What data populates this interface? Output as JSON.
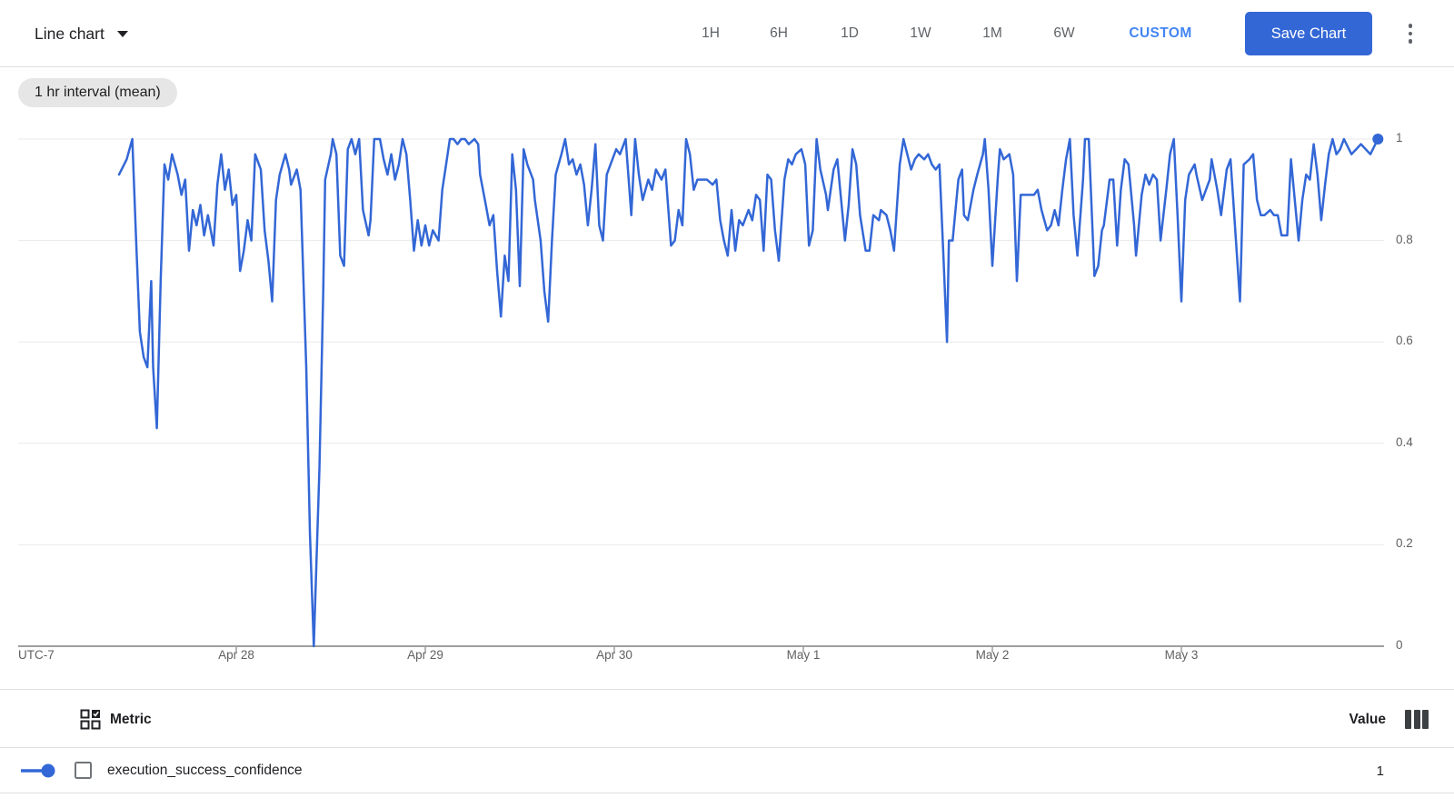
{
  "header": {
    "chart_type_label": "Line chart",
    "time_ranges": [
      "1H",
      "6H",
      "1D",
      "1W",
      "1M",
      "6W"
    ],
    "custom_label": "CUSTOM",
    "save_button_label": "Save Chart"
  },
  "interval_chip": "1 hr interval (mean)",
  "chart": {
    "line_color": "#3367d6",
    "y_tick_labels": [
      "1",
      "0.8",
      "0.6",
      "0.4",
      "0.2",
      "0"
    ],
    "x_axis": {
      "timezone_label": "UTC-7",
      "day_labels": [
        "Apr 28",
        "Apr 29",
        "Apr 30",
        "May 1",
        "May 2",
        "May 3"
      ]
    }
  },
  "chart_data": {
    "type": "line",
    "title": "",
    "interval": "1 hr interval (mean)",
    "ylim": [
      0,
      1
    ],
    "y_ticks": [
      0,
      0.2,
      0.4,
      0.6,
      0.8,
      1
    ],
    "x_tick_labels": [
      "Apr 28",
      "Apr 29",
      "Apr 30",
      "May 1",
      "May 2",
      "May 3"
    ],
    "x_unit": "days relative to Apr 28 00:00 (UTC-7)",
    "grid": true,
    "legend_position": "bottom-table",
    "series": [
      {
        "name": "execution_success_confidence",
        "color": "#3367d6",
        "current_value": 1,
        "points": [
          [
            -0.62,
            0.93
          ],
          [
            -0.58,
            0.96
          ],
          [
            -0.55,
            1.0
          ],
          [
            -0.53,
            0.8
          ],
          [
            -0.51,
            0.62
          ],
          [
            -0.49,
            0.57
          ],
          [
            -0.47,
            0.55
          ],
          [
            -0.45,
            0.72
          ],
          [
            -0.44,
            0.55
          ],
          [
            -0.42,
            0.43
          ],
          [
            -0.4,
            0.72
          ],
          [
            -0.38,
            0.95
          ],
          [
            -0.36,
            0.92
          ],
          [
            -0.34,
            0.97
          ],
          [
            -0.31,
            0.93
          ],
          [
            -0.29,
            0.89
          ],
          [
            -0.27,
            0.92
          ],
          [
            -0.25,
            0.78
          ],
          [
            -0.23,
            0.86
          ],
          [
            -0.21,
            0.83
          ],
          [
            -0.19,
            0.87
          ],
          [
            -0.17,
            0.81
          ],
          [
            -0.15,
            0.85
          ],
          [
            -0.12,
            0.79
          ],
          [
            -0.1,
            0.91
          ],
          [
            -0.08,
            0.97
          ],
          [
            -0.06,
            0.9
          ],
          [
            -0.04,
            0.94
          ],
          [
            -0.02,
            0.87
          ],
          [
            0.0,
            0.89
          ],
          [
            0.02,
            0.74
          ],
          [
            0.04,
            0.78
          ],
          [
            0.06,
            0.84
          ],
          [
            0.08,
            0.8
          ],
          [
            0.1,
            0.97
          ],
          [
            0.13,
            0.94
          ],
          [
            0.15,
            0.82
          ],
          [
            0.17,
            0.76
          ],
          [
            0.19,
            0.68
          ],
          [
            0.21,
            0.88
          ],
          [
            0.23,
            0.93
          ],
          [
            0.26,
            0.97
          ],
          [
            0.28,
            0.94
          ],
          [
            0.29,
            0.91
          ],
          [
            0.32,
            0.94
          ],
          [
            0.34,
            0.9
          ],
          [
            0.37,
            0.55
          ],
          [
            0.39,
            0.22
          ],
          [
            0.41,
            0.0
          ],
          [
            0.44,
            0.35
          ],
          [
            0.46,
            0.7
          ],
          [
            0.47,
            0.92
          ],
          [
            0.5,
            0.97
          ],
          [
            0.51,
            1.0
          ],
          [
            0.53,
            0.97
          ],
          [
            0.55,
            0.77
          ],
          [
            0.57,
            0.75
          ],
          [
            0.59,
            0.98
          ],
          [
            0.61,
            1.0
          ],
          [
            0.63,
            0.97
          ],
          [
            0.65,
            1.0
          ],
          [
            0.67,
            0.86
          ],
          [
            0.7,
            0.81
          ],
          [
            0.71,
            0.84
          ],
          [
            0.73,
            1.0
          ],
          [
            0.76,
            1.0
          ],
          [
            0.78,
            0.96
          ],
          [
            0.8,
            0.93
          ],
          [
            0.82,
            0.97
          ],
          [
            0.84,
            0.92
          ],
          [
            0.86,
            0.95
          ],
          [
            0.88,
            1.0
          ],
          [
            0.9,
            0.97
          ],
          [
            0.92,
            0.88
          ],
          [
            0.94,
            0.78
          ],
          [
            0.96,
            0.84
          ],
          [
            0.98,
            0.79
          ],
          [
            1.0,
            0.83
          ],
          [
            1.02,
            0.79
          ],
          [
            1.04,
            0.82
          ],
          [
            1.07,
            0.8
          ],
          [
            1.09,
            0.9
          ],
          [
            1.11,
            0.95
          ],
          [
            1.13,
            1.0
          ],
          [
            1.15,
            1.0
          ],
          [
            1.17,
            0.99
          ],
          [
            1.19,
            1.0
          ],
          [
            1.21,
            1.0
          ],
          [
            1.23,
            0.99
          ],
          [
            1.26,
            1.0
          ],
          [
            1.28,
            0.99
          ],
          [
            1.29,
            0.93
          ],
          [
            1.32,
            0.87
          ],
          [
            1.34,
            0.83
          ],
          [
            1.36,
            0.85
          ],
          [
            1.38,
            0.74
          ],
          [
            1.4,
            0.65
          ],
          [
            1.42,
            0.77
          ],
          [
            1.44,
            0.72
          ],
          [
            1.46,
            0.97
          ],
          [
            1.48,
            0.9
          ],
          [
            1.5,
            0.71
          ],
          [
            1.52,
            0.98
          ],
          [
            1.54,
            0.95
          ],
          [
            1.57,
            0.92
          ],
          [
            1.58,
            0.88
          ],
          [
            1.61,
            0.8
          ],
          [
            1.63,
            0.7
          ],
          [
            1.65,
            0.64
          ],
          [
            1.67,
            0.8
          ],
          [
            1.69,
            0.93
          ],
          [
            1.72,
            0.97
          ],
          [
            1.74,
            1.0
          ],
          [
            1.76,
            0.95
          ],
          [
            1.78,
            0.96
          ],
          [
            1.8,
            0.93
          ],
          [
            1.82,
            0.95
          ],
          [
            1.84,
            0.91
          ],
          [
            1.86,
            0.83
          ],
          [
            1.88,
            0.9
          ],
          [
            1.9,
            0.99
          ],
          [
            1.92,
            0.83
          ],
          [
            1.94,
            0.8
          ],
          [
            1.96,
            0.93
          ],
          [
            1.99,
            0.96
          ],
          [
            2.01,
            0.98
          ],
          [
            2.03,
            0.97
          ],
          [
            2.06,
            1.0
          ],
          [
            2.09,
            0.85
          ],
          [
            2.11,
            1.0
          ],
          [
            2.13,
            0.93
          ],
          [
            2.15,
            0.88
          ],
          [
            2.18,
            0.92
          ],
          [
            2.2,
            0.9
          ],
          [
            2.22,
            0.94
          ],
          [
            2.25,
            0.92
          ],
          [
            2.27,
            0.94
          ],
          [
            2.3,
            0.79
          ],
          [
            2.32,
            0.8
          ],
          [
            2.34,
            0.86
          ],
          [
            2.36,
            0.83
          ],
          [
            2.38,
            1.0
          ],
          [
            2.4,
            0.97
          ],
          [
            2.42,
            0.9
          ],
          [
            2.44,
            0.92
          ],
          [
            2.47,
            0.92
          ],
          [
            2.49,
            0.92
          ],
          [
            2.52,
            0.91
          ],
          [
            2.54,
            0.92
          ],
          [
            2.56,
            0.84
          ],
          [
            2.58,
            0.8
          ],
          [
            2.6,
            0.77
          ],
          [
            2.62,
            0.86
          ],
          [
            2.64,
            0.78
          ],
          [
            2.66,
            0.84
          ],
          [
            2.68,
            0.83
          ],
          [
            2.71,
            0.86
          ],
          [
            2.73,
            0.84
          ],
          [
            2.75,
            0.89
          ],
          [
            2.77,
            0.88
          ],
          [
            2.79,
            0.78
          ],
          [
            2.81,
            0.93
          ],
          [
            2.83,
            0.92
          ],
          [
            2.85,
            0.82
          ],
          [
            2.87,
            0.76
          ],
          [
            2.9,
            0.92
          ],
          [
            2.92,
            0.96
          ],
          [
            2.94,
            0.95
          ],
          [
            2.96,
            0.97
          ],
          [
            2.99,
            0.98
          ],
          [
            3.01,
            0.95
          ],
          [
            3.03,
            0.79
          ],
          [
            3.05,
            0.82
          ],
          [
            3.07,
            1.0
          ],
          [
            3.09,
            0.94
          ],
          [
            3.12,
            0.89
          ],
          [
            3.13,
            0.86
          ],
          [
            3.16,
            0.94
          ],
          [
            3.18,
            0.96
          ],
          [
            3.2,
            0.88
          ],
          [
            3.22,
            0.8
          ],
          [
            3.24,
            0.87
          ],
          [
            3.26,
            0.98
          ],
          [
            3.28,
            0.95
          ],
          [
            3.3,
            0.85
          ],
          [
            3.33,
            0.78
          ],
          [
            3.35,
            0.78
          ],
          [
            3.37,
            0.85
          ],
          [
            3.4,
            0.84
          ],
          [
            3.41,
            0.86
          ],
          [
            3.44,
            0.85
          ],
          [
            3.46,
            0.82
          ],
          [
            3.48,
            0.78
          ],
          [
            3.51,
            0.95
          ],
          [
            3.53,
            1.0
          ],
          [
            3.55,
            0.97
          ],
          [
            3.57,
            0.94
          ],
          [
            3.59,
            0.96
          ],
          [
            3.61,
            0.97
          ],
          [
            3.64,
            0.96
          ],
          [
            3.66,
            0.97
          ],
          [
            3.68,
            0.95
          ],
          [
            3.7,
            0.94
          ],
          [
            3.72,
            0.95
          ],
          [
            3.74,
            0.78
          ],
          [
            3.76,
            0.6
          ],
          [
            3.77,
            0.8
          ],
          [
            3.79,
            0.8
          ],
          [
            3.82,
            0.92
          ],
          [
            3.84,
            0.94
          ],
          [
            3.85,
            0.85
          ],
          [
            3.87,
            0.84
          ],
          [
            3.9,
            0.9
          ],
          [
            3.92,
            0.93
          ],
          [
            3.95,
            0.97
          ],
          [
            3.96,
            1.0
          ],
          [
            3.98,
            0.9
          ],
          [
            4.0,
            0.75
          ],
          [
            4.03,
            0.93
          ],
          [
            4.04,
            0.98
          ],
          [
            4.06,
            0.96
          ],
          [
            4.09,
            0.97
          ],
          [
            4.11,
            0.93
          ],
          [
            4.13,
            0.72
          ],
          [
            4.15,
            0.89
          ],
          [
            4.17,
            0.89
          ],
          [
            4.2,
            0.89
          ],
          [
            4.22,
            0.89
          ],
          [
            4.24,
            0.9
          ],
          [
            4.26,
            0.86
          ],
          [
            4.29,
            0.82
          ],
          [
            4.31,
            0.83
          ],
          [
            4.33,
            0.86
          ],
          [
            4.35,
            0.83
          ],
          [
            4.37,
            0.9
          ],
          [
            4.39,
            0.96
          ],
          [
            4.41,
            1.0
          ],
          [
            4.43,
            0.85
          ],
          [
            4.45,
            0.77
          ],
          [
            4.48,
            0.92
          ],
          [
            4.49,
            1.0
          ],
          [
            4.51,
            1.0
          ],
          [
            4.54,
            0.73
          ],
          [
            4.56,
            0.75
          ],
          [
            4.58,
            0.82
          ],
          [
            4.59,
            0.83
          ],
          [
            4.62,
            0.92
          ],
          [
            4.64,
            0.92
          ],
          [
            4.66,
            0.79
          ],
          [
            4.68,
            0.9
          ],
          [
            4.7,
            0.96
          ],
          [
            4.72,
            0.95
          ],
          [
            4.75,
            0.83
          ],
          [
            4.76,
            0.77
          ],
          [
            4.79,
            0.89
          ],
          [
            4.81,
            0.93
          ],
          [
            4.83,
            0.91
          ],
          [
            4.85,
            0.93
          ],
          [
            4.87,
            0.92
          ],
          [
            4.89,
            0.8
          ],
          [
            4.92,
            0.9
          ],
          [
            4.94,
            0.97
          ],
          [
            4.96,
            1.0
          ],
          [
            4.98,
            0.85
          ],
          [
            5.0,
            0.68
          ],
          [
            5.02,
            0.88
          ],
          [
            5.04,
            0.93
          ],
          [
            5.07,
            0.95
          ],
          [
            5.08,
            0.93
          ],
          [
            5.11,
            0.88
          ],
          [
            5.12,
            0.89
          ],
          [
            5.15,
            0.92
          ],
          [
            5.16,
            0.96
          ],
          [
            5.19,
            0.9
          ],
          [
            5.21,
            0.85
          ],
          [
            5.24,
            0.94
          ],
          [
            5.26,
            0.96
          ],
          [
            5.28,
            0.85
          ],
          [
            5.31,
            0.68
          ],
          [
            5.33,
            0.95
          ],
          [
            5.36,
            0.96
          ],
          [
            5.38,
            0.97
          ],
          [
            5.4,
            0.88
          ],
          [
            5.42,
            0.85
          ],
          [
            5.44,
            0.85
          ],
          [
            5.47,
            0.86
          ],
          [
            5.49,
            0.85
          ],
          [
            5.51,
            0.85
          ],
          [
            5.53,
            0.81
          ],
          [
            5.56,
            0.81
          ],
          [
            5.58,
            0.96
          ],
          [
            5.6,
            0.88
          ],
          [
            5.62,
            0.8
          ],
          [
            5.64,
            0.88
          ],
          [
            5.66,
            0.93
          ],
          [
            5.68,
            0.92
          ],
          [
            5.7,
            0.99
          ],
          [
            5.72,
            0.93
          ],
          [
            5.74,
            0.84
          ],
          [
            5.76,
            0.91
          ],
          [
            5.78,
            0.97
          ],
          [
            5.8,
            1.0
          ],
          [
            5.82,
            0.97
          ],
          [
            5.84,
            0.98
          ],
          [
            5.86,
            1.0
          ],
          [
            5.9,
            0.97
          ],
          [
            5.95,
            0.99
          ],
          [
            6.0,
            0.97
          ],
          [
            6.04,
            1.0
          ]
        ]
      }
    ]
  },
  "table": {
    "metric_header": "Metric",
    "value_header": "Value",
    "rows": [
      {
        "metric": "execution_success_confidence",
        "value": "1",
        "color": "#3367d6",
        "checked": false
      }
    ]
  }
}
